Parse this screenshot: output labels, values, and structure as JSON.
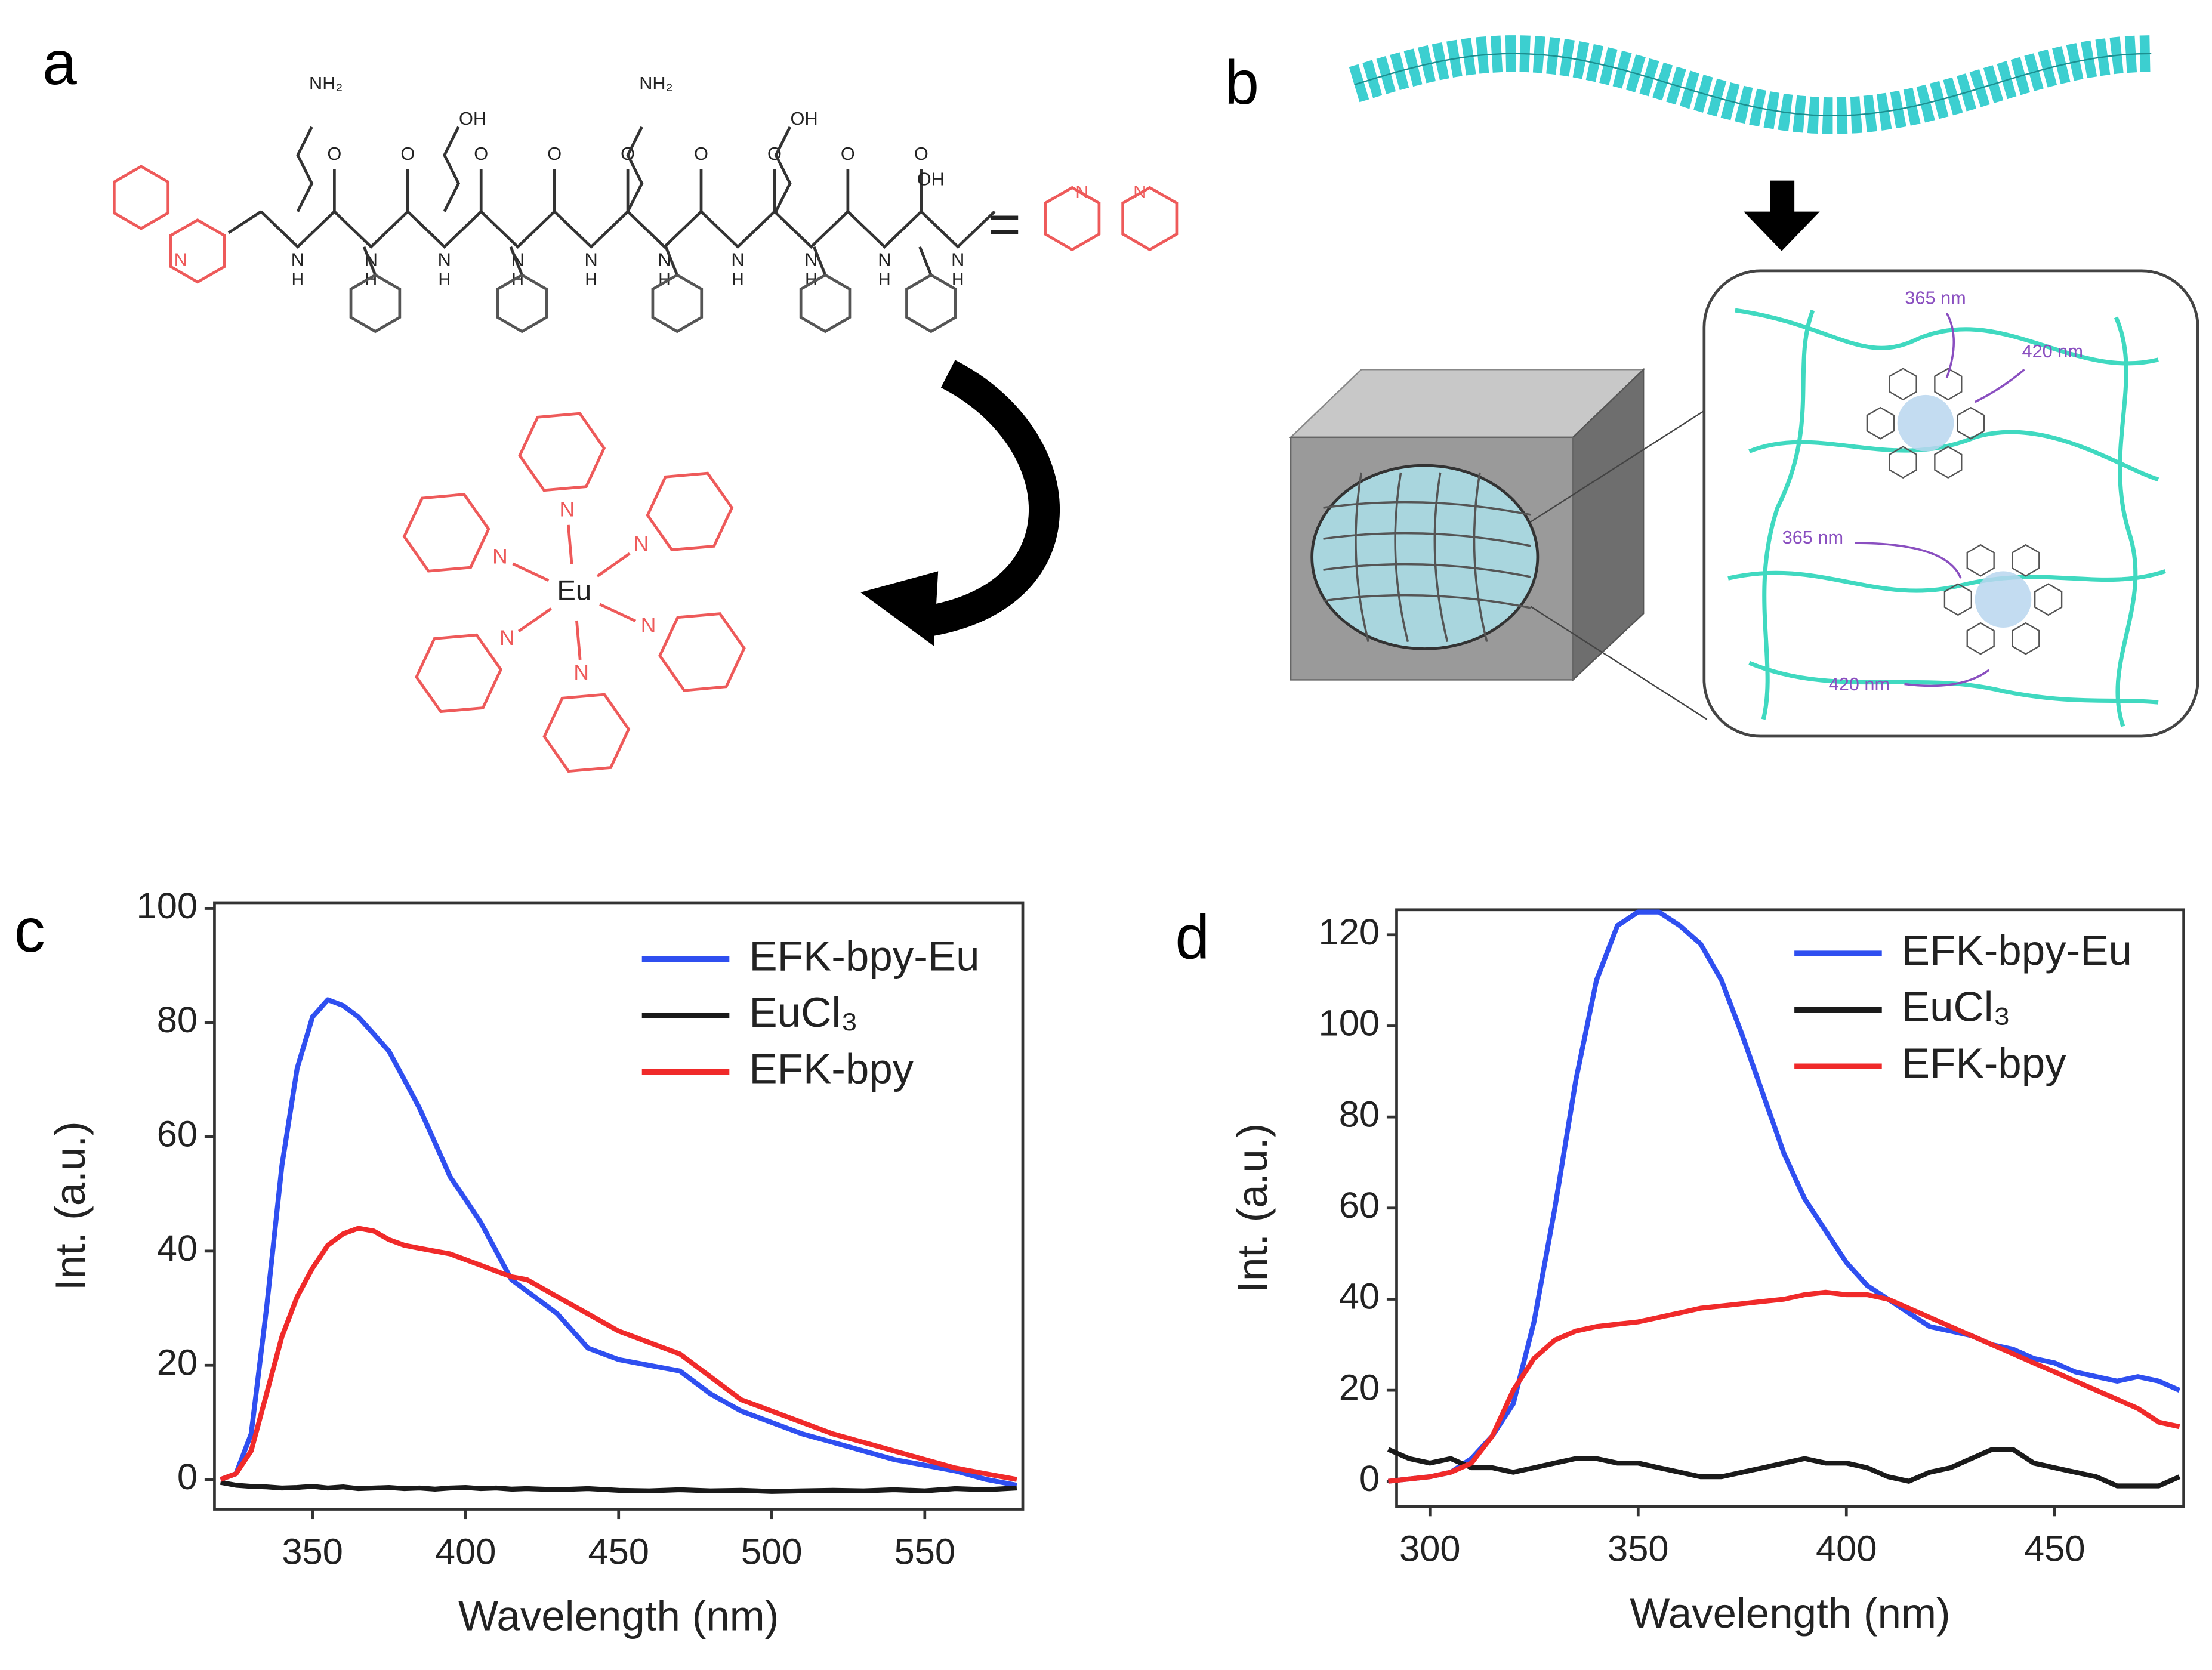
{
  "figure": {
    "panel_labels": [
      "a",
      "b",
      "c",
      "d"
    ],
    "panel_a": {
      "amine": "NH₂",
      "acid": "OH",
      "nitrogen": "N",
      "oxygen": "O",
      "hydrogen": "H",
      "equals": "=",
      "metal": "Eu"
    },
    "panel_b": {
      "excitation": "365 nm",
      "emission": "420 nm"
    }
  },
  "chart_data": [
    {
      "type": "line",
      "xlabel": "Wavelength (nm)",
      "ylabel": "Int. (a.u.)",
      "x": [
        320,
        325,
        330,
        335,
        340,
        345,
        350,
        355,
        360,
        365,
        370,
        375,
        380,
        385,
        390,
        395,
        400,
        405,
        410,
        415,
        420,
        430,
        440,
        450,
        460,
        470,
        480,
        490,
        500,
        510,
        520,
        530,
        540,
        550,
        560,
        570,
        580
      ],
      "series": [
        {
          "name": "EFK-bpy-Eu",
          "color": "#2f4ff0",
          "values": [
            0,
            1,
            8,
            30,
            55,
            72,
            81,
            84,
            83,
            81,
            78,
            75,
            70,
            65,
            59,
            53,
            49,
            45,
            40,
            35,
            33,
            29,
            23,
            21,
            20,
            19,
            15,
            12,
            10,
            8,
            6.5,
            5,
            3.5,
            2.5,
            1.5,
            0,
            -1
          ]
        },
        {
          "name": "EuCl₃",
          "color": "#1a1a1a",
          "values": [
            -0.5,
            -1,
            -1.2,
            -1.3,
            -1.5,
            -1.4,
            -1.2,
            -1.5,
            -1.3,
            -1.6,
            -1.5,
            -1.4,
            -1.6,
            -1.5,
            -1.7,
            -1.5,
            -1.4,
            -1.6,
            -1.5,
            -1.7,
            -1.6,
            -1.8,
            -1.6,
            -1.9,
            -2,
            -1.8,
            -2,
            -1.9,
            -2.1,
            -2,
            -1.9,
            -2,
            -1.8,
            -2,
            -1.6,
            -1.8,
            -1.5
          ]
        },
        {
          "name": "EFK-bpy",
          "color": "#f02a2a",
          "values": [
            0,
            1,
            5,
            15,
            25,
            32,
            37,
            41,
            43,
            44,
            43.5,
            42,
            41,
            40.5,
            40,
            39.5,
            38.5,
            37.5,
            36.5,
            35.5,
            35,
            32,
            29,
            26,
            24,
            22,
            18,
            14,
            12,
            10,
            8,
            6.5,
            5,
            3.5,
            2,
            1,
            0
          ]
        }
      ],
      "xlim": [
        318,
        582
      ],
      "xticks": [
        350,
        400,
        450,
        500,
        550
      ],
      "ylim": [
        -5.2,
        101
      ],
      "yticks": [
        0,
        20,
        40,
        60,
        80,
        100
      ],
      "grid": false,
      "legend": "upper right"
    },
    {
      "type": "line",
      "xlabel": "Wavelength (nm)",
      "ylabel": "Int. (a.u.)",
      "x": [
        290,
        295,
        300,
        305,
        310,
        315,
        320,
        325,
        330,
        335,
        340,
        345,
        350,
        355,
        360,
        365,
        370,
        375,
        380,
        385,
        390,
        395,
        400,
        405,
        410,
        415,
        420,
        425,
        430,
        435,
        440,
        445,
        450,
        455,
        460,
        465,
        470,
        475,
        480
      ],
      "series": [
        {
          "name": "EFK-bpy-Eu",
          "color": "#2f4ff0",
          "values": [
            0,
            0.5,
            1,
            2,
            5,
            10,
            17,
            35,
            60,
            88,
            110,
            122,
            125,
            125,
            122,
            118,
            110,
            98,
            85,
            72,
            62,
            55,
            48,
            43,
            40,
            37,
            34,
            33,
            32,
            30,
            29,
            27,
            26,
            24,
            23,
            22,
            23,
            22,
            20
          ]
        },
        {
          "name": "EuCl₃",
          "color": "#1a1a1a",
          "values": [
            7,
            5,
            4,
            5,
            3,
            3,
            2,
            3,
            4,
            5,
            5,
            4,
            4,
            3,
            2,
            1,
            1,
            2,
            3,
            4,
            5,
            4,
            4,
            3,
            1,
            0,
            2,
            3,
            5,
            7,
            7,
            4,
            3,
            2,
            1,
            -1,
            -1,
            -1,
            1
          ]
        },
        {
          "name": "EFK-bpy",
          "color": "#f02a2a",
          "values": [
            0,
            0.5,
            1,
            2,
            4,
            10,
            20,
            27,
            31,
            33,
            34,
            34.5,
            35,
            36,
            37,
            38,
            38.5,
            39,
            39.5,
            40,
            41,
            41.5,
            41,
            41,
            40,
            38,
            36,
            34,
            32,
            30,
            28,
            26,
            24,
            22,
            20,
            18,
            16,
            13,
            12
          ]
        }
      ],
      "xlim": [
        292,
        481
      ],
      "xticks": [
        300,
        350,
        400,
        450
      ],
      "ylim": [
        -5.5,
        125.5
      ],
      "yticks": [
        0,
        20,
        40,
        60,
        80,
        100,
        120
      ],
      "grid": false,
      "legend": "upper right"
    }
  ]
}
